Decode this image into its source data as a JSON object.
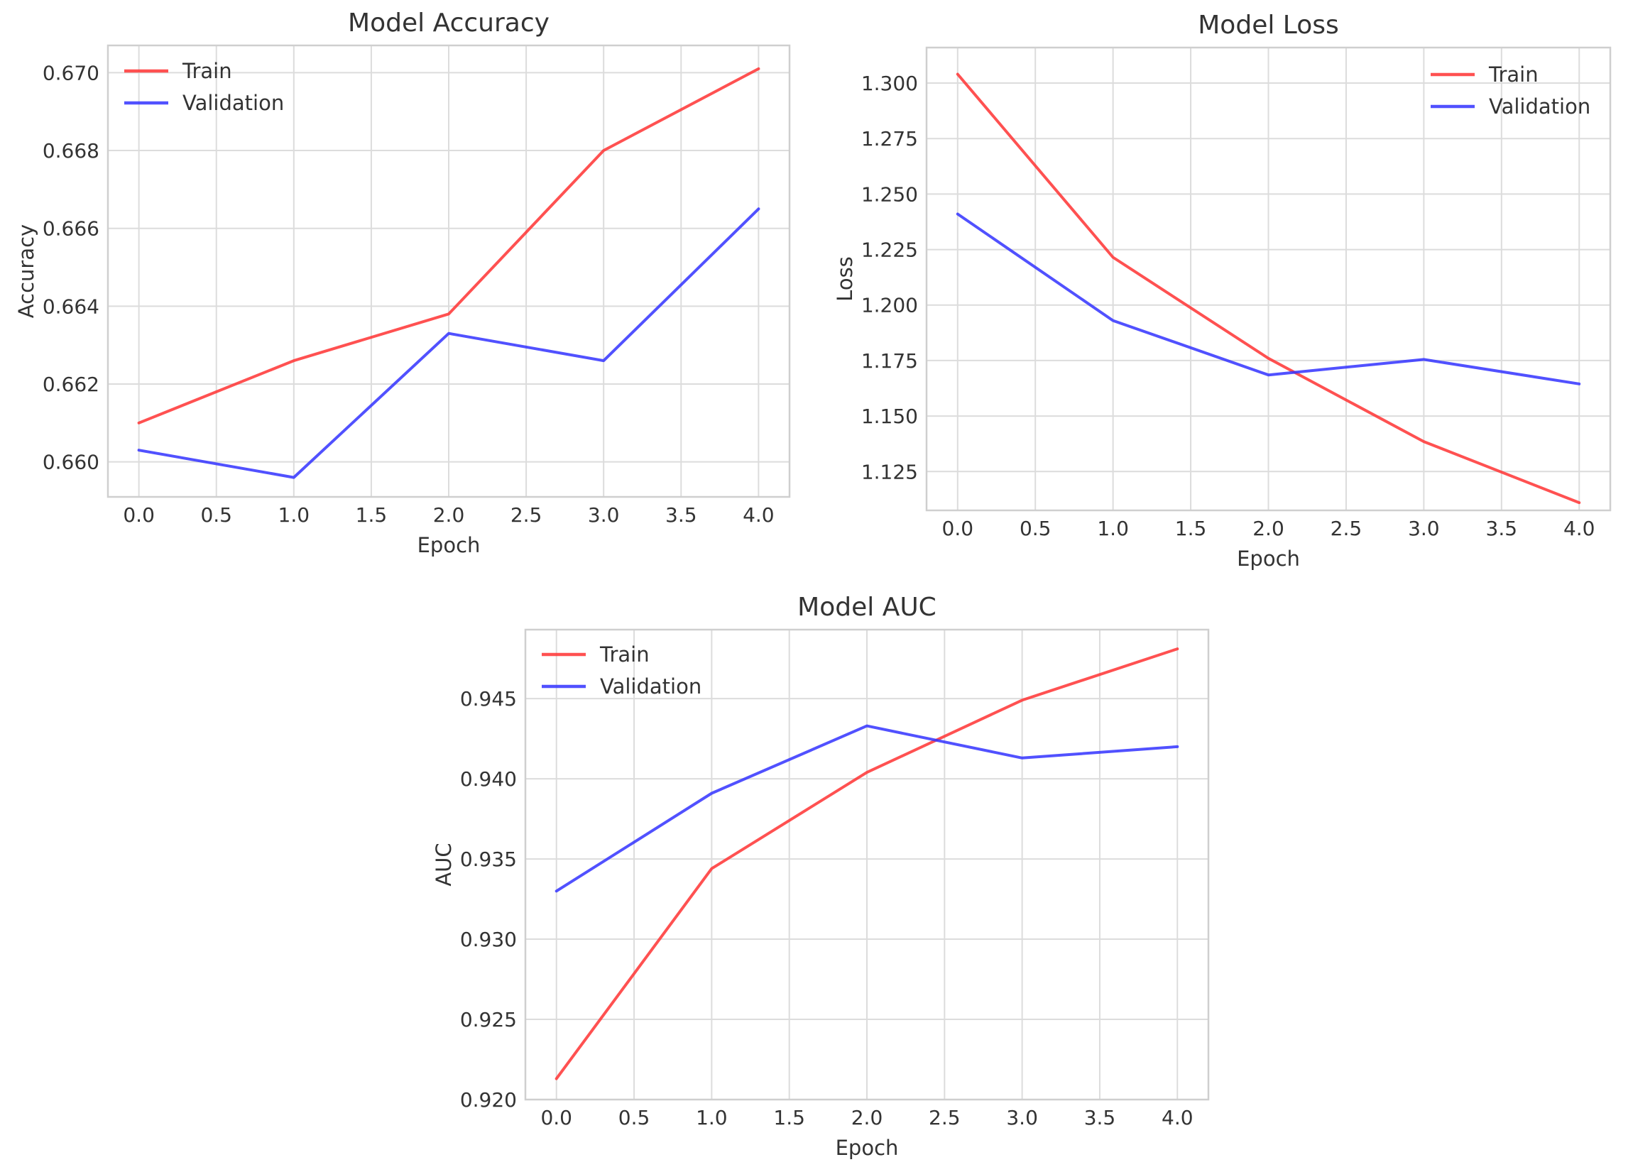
{
  "chart_data": [
    {
      "type": "line",
      "title": "Model Accuracy",
      "xlabel": "Epoch",
      "ylabel": "Accuracy",
      "x": [
        0,
        1,
        2,
        3,
        4
      ],
      "xlim": [
        -0.2,
        4.2
      ],
      "ylim": [
        0.6591,
        0.6707
      ],
      "xticks": [
        "0.0",
        "0.5",
        "1.0",
        "1.5",
        "2.0",
        "2.5",
        "3.0",
        "3.5",
        "4.0"
      ],
      "yticks": [
        "0.660",
        "0.662",
        "0.664",
        "0.666",
        "0.668",
        "0.670"
      ],
      "grid": true,
      "legend_position": "top-left",
      "series": [
        {
          "name": "Train",
          "color": "#ff3333",
          "values": [
            0.661,
            0.6626,
            0.6638,
            0.668,
            0.6701
          ]
        },
        {
          "name": "Validation",
          "color": "#3333ff",
          "values": [
            0.6603,
            0.6596,
            0.6633,
            0.6626,
            0.6665
          ]
        }
      ]
    },
    {
      "type": "line",
      "title": "Model Loss",
      "xlabel": "Epoch",
      "ylabel": "Loss",
      "x": [
        0,
        1,
        2,
        3,
        4
      ],
      "xlim": [
        -0.2,
        4.2
      ],
      "ylim": [
        1.1075,
        1.316
      ],
      "xticks": [
        "0.0",
        "0.5",
        "1.0",
        "1.5",
        "2.0",
        "2.5",
        "3.0",
        "3.5",
        "4.0"
      ],
      "yticks": [
        "1.125",
        "1.150",
        "1.175",
        "1.200",
        "1.225",
        "1.250",
        "1.275",
        "1.300"
      ],
      "grid": true,
      "legend_position": "top-right",
      "series": [
        {
          "name": "Train",
          "color": "#ff3333",
          "values": [
            1.304,
            1.2215,
            1.176,
            1.1385,
            1.111
          ]
        },
        {
          "name": "Validation",
          "color": "#3333ff",
          "values": [
            1.241,
            1.193,
            1.1685,
            1.1755,
            1.1645
          ]
        }
      ]
    },
    {
      "type": "line",
      "title": "Model AUC",
      "xlabel": "Epoch",
      "ylabel": "AUC",
      "x": [
        0,
        1,
        2,
        3,
        4
      ],
      "xlim": [
        -0.2,
        4.2
      ],
      "ylim": [
        0.92,
        0.9493
      ],
      "xticks": [
        "0.0",
        "0.5",
        "1.0",
        "1.5",
        "2.0",
        "2.5",
        "3.0",
        "3.5",
        "4.0"
      ],
      "yticks": [
        "0.920",
        "0.925",
        "0.930",
        "0.935",
        "0.940",
        "0.945"
      ],
      "grid": true,
      "legend_position": "top-left",
      "series": [
        {
          "name": "Train",
          "color": "#ff3333",
          "values": [
            0.9213,
            0.9344,
            0.9404,
            0.9449,
            0.9481
          ]
        },
        {
          "name": "Validation",
          "color": "#3333ff",
          "values": [
            0.933,
            0.9391,
            0.9433,
            0.9413,
            0.942
          ]
        }
      ]
    }
  ]
}
